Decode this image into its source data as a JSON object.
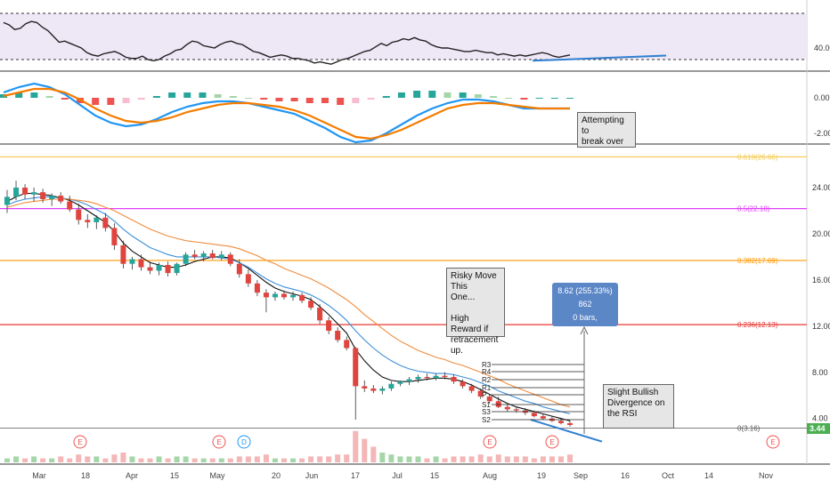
{
  "chart_data": [
    {
      "panel": "rsi",
      "type": "line",
      "y_ticks": [
        "40.00"
      ],
      "levels": [
        70,
        30
      ],
      "band_color": "#ede7f6",
      "line_color": "#222222",
      "trendline_color": "#2f7fd0",
      "values": [
        62,
        60,
        56,
        57,
        61,
        63,
        62,
        58,
        55,
        50,
        45,
        46,
        44,
        42,
        40,
        36,
        34,
        33,
        35,
        36,
        37,
        35,
        32,
        31,
        31,
        33,
        30,
        29,
        30,
        33,
        35,
        38,
        39,
        43,
        46,
        45,
        42,
        41,
        40,
        43,
        45,
        46,
        44,
        43,
        40,
        37,
        36,
        34,
        32,
        33,
        34,
        33,
        31,
        31,
        30,
        29,
        27,
        28,
        27,
        26,
        28,
        30,
        31,
        33,
        35,
        37,
        38,
        41,
        44,
        42,
        45,
        46,
        48,
        47,
        49,
        47,
        46,
        43,
        41,
        40,
        40,
        39,
        38,
        37,
        37,
        38,
        37,
        36,
        36,
        34,
        35,
        34,
        33,
        34,
        33,
        34,
        35,
        36,
        35,
        33,
        32,
        33,
        34
      ]
    },
    {
      "panel": "macd",
      "type": "line",
      "y_ticks": [
        "0.00",
        "-2.00"
      ],
      "series": [
        {
          "name": "",
          "color": "#2196f3",
          "values": [
            0.3,
            0.6,
            0.8,
            0.6,
            0.2,
            -0.4,
            -1.0,
            -1.4,
            -1.6,
            -1.5,
            -1.2,
            -0.8,
            -0.5,
            -0.3,
            -0.2,
            -0.2,
            -0.3,
            -0.5,
            -0.7,
            -0.9,
            -1.3,
            -1.7,
            -2.2,
            -2.5,
            -2.4,
            -2.0,
            -1.5,
            -1.0,
            -0.6,
            -0.3,
            -0.1,
            -0.1,
            -0.2,
            -0.4,
            -0.6,
            -0.6,
            -0.6,
            -0.6
          ]
        },
        {
          "name": "",
          "color": "#f57c00",
          "values": [
            0.1,
            0.3,
            0.5,
            0.5,
            0.3,
            -0.1,
            -0.6,
            -1.0,
            -1.3,
            -1.4,
            -1.3,
            -1.1,
            -0.8,
            -0.6,
            -0.4,
            -0.3,
            -0.3,
            -0.4,
            -0.5,
            -0.7,
            -1.0,
            -1.4,
            -1.8,
            -2.2,
            -2.3,
            -2.1,
            -1.8,
            -1.4,
            -1.0,
            -0.6,
            -0.4,
            -0.3,
            -0.3,
            -0.4,
            -0.5,
            -0.6,
            -0.6,
            -0.6
          ]
        }
      ],
      "histogram": [
        0.2,
        0.3,
        0.3,
        0.1,
        -0.1,
        -0.3,
        -0.4,
        -0.4,
        -0.3,
        -0.1,
        0.1,
        0.3,
        0.3,
        0.3,
        0.2,
        0.1,
        0.0,
        -0.1,
        -0.2,
        -0.2,
        -0.3,
        -0.3,
        -0.4,
        -0.3,
        -0.1,
        0.1,
        0.3,
        0.4,
        0.4,
        0.3,
        0.3,
        0.2,
        0.1,
        0.0,
        -0.1,
        0.0,
        0.0,
        0.0
      ],
      "hist_colors": {
        "up": "#26a69a",
        "up_light": "#a5d6a7",
        "down": "#ef5350",
        "down_light": "#f8bbd0"
      }
    },
    {
      "panel": "price",
      "type": "candlestick",
      "x_ticks": [
        "Mar",
        "18",
        "Apr",
        "15",
        "May",
        "20",
        "Jun",
        "17",
        "Jul",
        "15",
        "Aug",
        "19",
        "Sep",
        "16",
        "Oct",
        "14",
        "Nov"
      ],
      "y_ticks": [
        "24.00",
        "20.00",
        "16.00",
        "12.00",
        "8.00",
        "4.00"
      ],
      "current_price": "3.44",
      "candles": [
        [
          22.5,
          23.8,
          21.8,
          23.2
        ],
        [
          23.2,
          24.6,
          22.9,
          24.0
        ],
        [
          24.0,
          24.3,
          23.0,
          23.4
        ],
        [
          23.4,
          24.0,
          22.8,
          23.6
        ],
        [
          23.6,
          23.9,
          22.7,
          23.0
        ],
        [
          23.0,
          23.5,
          22.4,
          23.3
        ],
        [
          23.3,
          23.6,
          22.6,
          22.8
        ],
        [
          22.8,
          23.3,
          21.9,
          22.1
        ],
        [
          22.1,
          22.6,
          20.8,
          21.2
        ],
        [
          21.2,
          21.7,
          20.5,
          21.0
        ],
        [
          21.0,
          21.6,
          20.4,
          21.4
        ],
        [
          21.4,
          21.8,
          20.2,
          20.5
        ],
        [
          20.5,
          20.9,
          18.6,
          19.0
        ],
        [
          19.0,
          19.4,
          17.0,
          17.4
        ],
        [
          17.4,
          18.0,
          16.9,
          17.8
        ],
        [
          17.8,
          18.2,
          16.8,
          17.1
        ],
        [
          17.1,
          17.6,
          16.5,
          16.8
        ],
        [
          16.8,
          17.5,
          16.4,
          17.3
        ],
        [
          17.3,
          17.6,
          16.3,
          16.6
        ],
        [
          16.6,
          17.5,
          16.4,
          17.4
        ],
        [
          17.4,
          18.4,
          17.2,
          18.2
        ],
        [
          18.2,
          18.6,
          17.8,
          18.0
        ],
        [
          18.0,
          18.5,
          17.6,
          18.3
        ],
        [
          18.3,
          18.6,
          17.8,
          17.9
        ],
        [
          17.9,
          18.5,
          17.7,
          18.2
        ],
        [
          18.2,
          18.4,
          17.2,
          17.4
        ],
        [
          17.4,
          17.8,
          16.2,
          16.5
        ],
        [
          16.5,
          16.9,
          15.4,
          15.7
        ],
        [
          15.7,
          16.0,
          14.6,
          14.9
        ],
        [
          14.9,
          15.2,
          13.2,
          14.5
        ],
        [
          14.5,
          15.0,
          14.2,
          14.8
        ],
        [
          14.8,
          15.1,
          14.3,
          14.5
        ],
        [
          14.5,
          15.0,
          14.2,
          14.7
        ],
        [
          14.7,
          14.9,
          14.0,
          14.2
        ],
        [
          14.2,
          14.5,
          13.4,
          13.6
        ],
        [
          13.6,
          13.9,
          12.2,
          12.5
        ],
        [
          12.5,
          12.8,
          11.3,
          11.6
        ],
        [
          11.6,
          11.9,
          10.6,
          10.8
        ],
        [
          10.8,
          11.1,
          9.9,
          10.1
        ],
        [
          10.1,
          10.2,
          3.9,
          6.8
        ],
        [
          6.8,
          7.3,
          6.3,
          6.6
        ],
        [
          6.6,
          6.9,
          6.2,
          6.4
        ],
        [
          6.4,
          6.8,
          6.1,
          6.6
        ],
        [
          6.6,
          7.2,
          6.4,
          7.0
        ],
        [
          7.0,
          7.3,
          6.8,
          7.2
        ],
        [
          7.2,
          7.6,
          6.9,
          7.4
        ],
        [
          7.4,
          7.8,
          7.1,
          7.6
        ],
        [
          7.6,
          7.9,
          7.3,
          7.5
        ],
        [
          7.5,
          7.9,
          7.3,
          7.7
        ],
        [
          7.7,
          8.0,
          7.4,
          7.6
        ],
        [
          7.6,
          7.8,
          7.0,
          7.2
        ],
        [
          7.2,
          7.4,
          6.6,
          6.8
        ],
        [
          6.8,
          7.0,
          6.2,
          6.4
        ],
        [
          6.4,
          6.6,
          5.7,
          5.9
        ],
        [
          5.9,
          6.1,
          5.3,
          5.5
        ],
        [
          5.5,
          5.9,
          4.9,
          5.0
        ],
        [
          5.0,
          5.2,
          4.6,
          4.8
        ],
        [
          4.8,
          5.0,
          4.5,
          4.7
        ],
        [
          4.7,
          4.9,
          4.3,
          4.5
        ],
        [
          4.5,
          4.7,
          4.1,
          4.2
        ],
        [
          4.2,
          4.4,
          3.9,
          4.0
        ],
        [
          4.0,
          4.2,
          3.7,
          3.8
        ],
        [
          3.8,
          4.0,
          3.5,
          3.6
        ],
        [
          3.6,
          3.8,
          3.3,
          3.44
        ]
      ],
      "ma_series": [
        {
          "name": "",
          "color": "#111111",
          "values": [
            22.8,
            23.2,
            23.5,
            23.5,
            23.4,
            23.3,
            23.1,
            22.9,
            22.5,
            22.0,
            21.5,
            21.0,
            20.2,
            19.2,
            18.5,
            18.0,
            17.5,
            17.3,
            17.1,
            17.1,
            17.3,
            17.6,
            17.8,
            18.0,
            18.0,
            17.9,
            17.5,
            17.0,
            16.4,
            15.8,
            15.3,
            15.0,
            14.8,
            14.6,
            14.3,
            13.7,
            13.0,
            12.2,
            11.4,
            10.0,
            9.0,
            8.2,
            7.6,
            7.3,
            7.2,
            7.2,
            7.3,
            7.4,
            7.5,
            7.5,
            7.4,
            7.2,
            6.9,
            6.5,
            6.1,
            5.7,
            5.3,
            5.0,
            4.8,
            4.6,
            4.4,
            4.2,
            4.0,
            3.8
          ]
        },
        {
          "name": "",
          "color": "#3d8fd9",
          "values": [
            22.5,
            22.8,
            23.0,
            23.1,
            23.2,
            23.2,
            23.1,
            23.0,
            22.8,
            22.5,
            22.1,
            21.7,
            21.1,
            20.4,
            19.8,
            19.3,
            18.8,
            18.5,
            18.2,
            18.0,
            18.0,
            18.0,
            18.0,
            18.0,
            17.9,
            17.8,
            17.5,
            17.1,
            16.6,
            16.1,
            15.7,
            15.4,
            15.2,
            15.0,
            14.7,
            14.3,
            13.8,
            13.2,
            12.5,
            11.6,
            10.8,
            10.1,
            9.5,
            9.0,
            8.6,
            8.3,
            8.1,
            8.0,
            7.9,
            7.9,
            7.8,
            7.6,
            7.4,
            7.1,
            6.8,
            6.4,
            6.1,
            5.8,
            5.5,
            5.3,
            5.0,
            4.8,
            4.6,
            4.4
          ]
        },
        {
          "name": "",
          "color": "#f08c3c",
          "values": [
            22.3,
            22.5,
            22.7,
            22.8,
            22.9,
            23.0,
            23.0,
            23.0,
            22.9,
            22.8,
            22.6,
            22.3,
            22.0,
            21.6,
            21.2,
            20.8,
            20.4,
            20.1,
            19.8,
            19.6,
            19.4,
            19.3,
            19.2,
            19.1,
            19.0,
            18.9,
            18.7,
            18.4,
            18.1,
            17.7,
            17.4,
            17.0,
            16.7,
            16.4,
            16.1,
            15.7,
            15.3,
            14.8,
            14.3,
            13.7,
            13.0,
            12.4,
            11.8,
            11.2,
            10.7,
            10.3,
            9.9,
            9.6,
            9.3,
            9.1,
            8.8,
            8.6,
            8.3,
            8.0,
            7.7,
            7.4,
            7.0,
            6.7,
            6.4,
            6.1,
            5.8,
            5.5,
            5.2,
            5.0
          ]
        }
      ],
      "fib_levels": [
        {
          "ratio": "0.618",
          "label": "0.618(26.66)",
          "price": 26.66,
          "color": "#f2c94c"
        },
        {
          "ratio": "0.5",
          "label": "0.5(22.18)",
          "price": 22.18,
          "color": "#e040fb"
        },
        {
          "ratio": "0.382",
          "label": "0.382(17.69)",
          "price": 17.69,
          "color": "#ff9800"
        },
        {
          "ratio": "0.236",
          "label": "0.236(12.13)",
          "price": 12.13,
          "color": "#e53935"
        },
        {
          "ratio": "0",
          "label": "0(3.16)",
          "price": 3.16,
          "color": "#555555"
        }
      ],
      "pivot_labels": [
        "R3",
        "R4",
        "R2",
        "R1",
        "P",
        "S1",
        "S3",
        "S2"
      ],
      "earnings_markers": [
        "E",
        "E",
        "D",
        "E",
        "E",
        "E"
      ],
      "volume": [
        2,
        3,
        2,
        3,
        2,
        2,
        3,
        2,
        4,
        3,
        3,
        2,
        4,
        5,
        3,
        2,
        2,
        3,
        2,
        3,
        3,
        2,
        2,
        2,
        2,
        2,
        3,
        3,
        3,
        4,
        2,
        2,
        2,
        2,
        3,
        3,
        3,
        4,
        4,
        16,
        12,
        8,
        5,
        4,
        3,
        3,
        3,
        2,
        3,
        2,
        3,
        3,
        3,
        4,
        3,
        4,
        3,
        3,
        3,
        2,
        3,
        3,
        3,
        4
      ]
    }
  ],
  "annotations": {
    "rsi_level": "40.00",
    "macd_note": "Attempting to\nbreak over the\nbaseline",
    "risky_note": "Risky Move This\nOne...\n\nHigh Reward if\nretracement up.",
    "measure_line1": "8.62 (255.33%) 862",
    "measure_line2": "0 bars,",
    "divergence_note": "Slight Bullish\nDivergence on\nthe RSI"
  }
}
